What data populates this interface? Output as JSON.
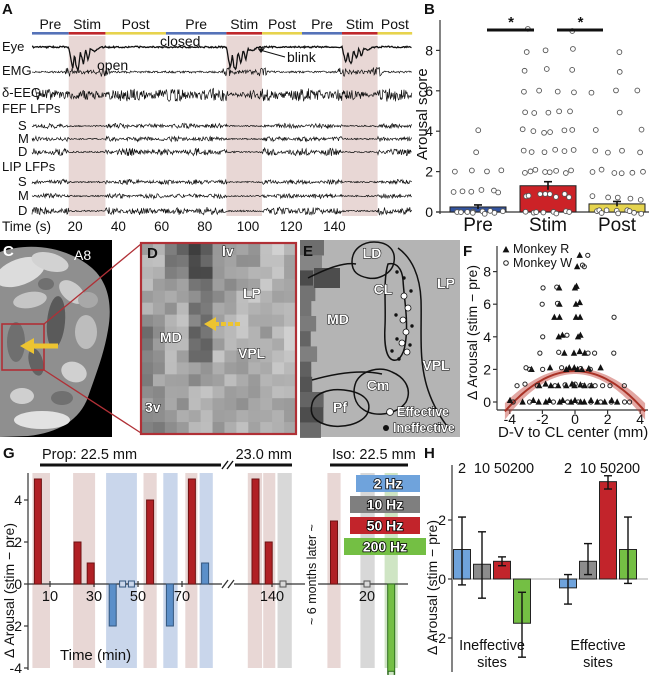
{
  "panels": {
    "A": {
      "label": "A",
      "phases": [
        {
          "name": "Pre",
          "t0": 0,
          "t1": 17,
          "color": "#5572b8"
        },
        {
          "name": "Stim",
          "t0": 17,
          "t1": 34,
          "color": "#bf282c"
        },
        {
          "name": "Post",
          "t0": 34,
          "t1": 62,
          "color": "#e7d34d"
        },
        {
          "name": "Pre",
          "t0": 62,
          "t1": 90,
          "color": "#5572b8"
        },
        {
          "name": "Stim",
          "t0": 90,
          "t1": 106.5,
          "color": "#bf282c"
        },
        {
          "name": "Post",
          "t0": 106.5,
          "t1": 125,
          "color": "#e7d34d"
        },
        {
          "name": "Pre",
          "t0": 125,
          "t1": 143.5,
          "color": "#5572b8"
        },
        {
          "name": "Stim",
          "t0": 143.5,
          "t1": 160,
          "color": "#bf282c"
        },
        {
          "name": "Post",
          "t0": 160,
          "t1": 176,
          "color": "#e7d34d"
        }
      ],
      "stim_windows": [
        [
          17,
          34
        ],
        [
          90,
          106.5
        ],
        [
          143.5,
          160
        ]
      ],
      "stim_band_color": "#e8d7d5",
      "trace_labels": [
        "Eye",
        "EMG",
        "δ-EEG"
      ],
      "lfp_groups": [
        {
          "label": "FEF LFPs",
          "subs": [
            "S",
            "M",
            "D"
          ]
        },
        {
          "label": "LIP LFPs",
          "subs": [
            "S",
            "M",
            "D"
          ]
        }
      ],
      "annotations": {
        "closed": "closed",
        "open": "open",
        "blink": "blink"
      },
      "time_axis": {
        "label": "Time (s)",
        "ticks": [
          20,
          40,
          60,
          80,
          100,
          120,
          140
        ]
      }
    },
    "B": {
      "label": "B"
    },
    "C": {
      "label": "C",
      "area_label": "A8",
      "box_color": "#b03036",
      "arrow_color": "#edc431"
    },
    "D": {
      "label": "D",
      "region_labels": [
        "lv",
        "LP",
        "MD",
        "VPL",
        "3v"
      ],
      "border_color": "#b03036",
      "arrow_color": "#edc431"
    },
    "E": {
      "label": "E",
      "region_labels": [
        "LD",
        "CL",
        "LP",
        "MD",
        "VPL",
        "Cm",
        "Pf"
      ],
      "legend": [
        {
          "label": "Effective",
          "marker": "white-dot"
        },
        {
          "label": "Ineffective",
          "marker": "black-dot"
        }
      ]
    },
    "F": {
      "label": "F"
    },
    "G": {
      "label": "G"
    },
    "H": {
      "label": "H"
    }
  },
  "chart_data": [
    {
      "panel": "B",
      "type": "bar",
      "ylabel": "Arousal score",
      "categories": [
        "Pre",
        "Stim",
        "Post"
      ],
      "bar_values": [
        0.25,
        1.3,
        0.4
      ],
      "bar_errors": [
        0.1,
        0.2,
        0.12
      ],
      "bar_colors": [
        "#34549f",
        "#cc2227",
        "#e5d44e"
      ],
      "ylim": [
        0,
        9.6
      ],
      "yticks": [
        0,
        2,
        4,
        6,
        8
      ],
      "points": {
        "Pre": [
          [
            0,
            10
          ],
          [
            1,
            6
          ],
          [
            2,
            4
          ],
          [
            3,
            1
          ],
          [
            4,
            1
          ]
        ],
        "Stim": [
          [
            0,
            8
          ],
          [
            0.8,
            8
          ],
          [
            2,
            8
          ],
          [
            3,
            6
          ],
          [
            4,
            6
          ],
          [
            5,
            5
          ],
          [
            6,
            4
          ],
          [
            7,
            3
          ],
          [
            8,
            3
          ],
          [
            9,
            2
          ]
        ],
        "Post": [
          [
            0,
            10
          ],
          [
            0.7,
            5
          ],
          [
            2,
            6
          ],
          [
            3,
            4
          ],
          [
            4,
            2
          ],
          [
            5,
            1
          ],
          [
            6,
            3
          ],
          [
            7,
            1
          ],
          [
            8,
            1
          ]
        ]
      },
      "significance": [
        {
          "from": "Pre",
          "to": "Stim",
          "label": "*"
        },
        {
          "from": "Stim",
          "to": "Post",
          "label": "*"
        }
      ]
    },
    {
      "panel": "F",
      "type": "scatter",
      "xlabel": "D-V to CL center (mm)",
      "ylabel": "Δ Arousal (stim − pre)",
      "xlim": [
        -4.5,
        4.5
      ],
      "ylim": [
        -0.7,
        9.6
      ],
      "xticks": [
        -4,
        -2,
        0,
        2,
        4
      ],
      "yticks": [
        0,
        2,
        4,
        6,
        8
      ],
      "series": [
        {
          "name": "Monkey R",
          "marker": "triangle",
          "points": [
            [
              0.3,
              9
            ],
            [
              0.2,
              8.3
            ],
            [
              -1,
              7
            ],
            [
              0,
              7
            ],
            [
              0.15,
              7.1
            ],
            [
              -1,
              6
            ],
            [
              0,
              6
            ],
            [
              0.25,
              6.1
            ],
            [
              -1.2,
              5.2
            ],
            [
              -0.9,
              5.2
            ],
            [
              0,
              5.2
            ],
            [
              0.3,
              5.2
            ],
            [
              -1,
              4
            ],
            [
              -0.8,
              4.1
            ],
            [
              0.2,
              4
            ],
            [
              0.4,
              4.1
            ],
            [
              -0.6,
              3
            ],
            [
              0,
              3
            ],
            [
              0.3,
              3.1
            ],
            [
              0.6,
              3
            ],
            [
              1.5,
              2.1
            ],
            [
              -2.6,
              2
            ],
            [
              -1.5,
              2.1
            ],
            [
              -0.5,
              2
            ],
            [
              -0.3,
              2.1
            ],
            [
              0,
              2.1
            ],
            [
              0.2,
              2
            ],
            [
              0.5,
              2
            ],
            [
              0.8,
              2.05
            ],
            [
              -2.2,
              1
            ],
            [
              -1.8,
              1.1
            ],
            [
              -1.5,
              1
            ],
            [
              -1,
              1
            ],
            [
              -0.5,
              1
            ],
            [
              -0.2,
              1.1
            ],
            [
              0,
              1
            ],
            [
              0.3,
              1.05
            ],
            [
              0.6,
              1
            ],
            [
              1,
              1
            ],
            [
              -4,
              0.1
            ],
            [
              -3.2,
              0
            ],
            [
              -2.5,
              0.1
            ],
            [
              -2.2,
              0
            ],
            [
              -1.8,
              0
            ],
            [
              -1.5,
              0.1
            ],
            [
              -1,
              0
            ],
            [
              -0.7,
              0.1
            ],
            [
              -0.3,
              0
            ],
            [
              0,
              0.1
            ],
            [
              0.3,
              0
            ],
            [
              0.6,
              0
            ],
            [
              1,
              0.1
            ],
            [
              1.4,
              0
            ],
            [
              1.8,
              0
            ],
            [
              2.2,
              0.1
            ],
            [
              2.6,
              0
            ]
          ]
        },
        {
          "name": "Monkey W",
          "marker": "circle",
          "points": [
            [
              0.8,
              9
            ],
            [
              0.45,
              8.4
            ],
            [
              0.6,
              8.3
            ],
            [
              -2,
              7
            ],
            [
              -1.1,
              7.05
            ],
            [
              -2,
              6
            ],
            [
              -1.05,
              6.05
            ],
            [
              2.4,
              5.2
            ],
            [
              -2,
              4
            ],
            [
              -0.5,
              4.1
            ],
            [
              -2.2,
              3
            ],
            [
              -1,
              3.05
            ],
            [
              0.8,
              3
            ],
            [
              1.2,
              3
            ],
            [
              2.4,
              3
            ],
            [
              -3,
              2.1
            ],
            [
              -2.8,
              2
            ],
            [
              -2,
              2
            ],
            [
              -0.8,
              2.1
            ],
            [
              0.35,
              2.05
            ],
            [
              1,
              2
            ],
            [
              -3.5,
              1
            ],
            [
              -3,
              1.1
            ],
            [
              -2.3,
              1
            ],
            [
              -1.2,
              1
            ],
            [
              -0.6,
              1.05
            ],
            [
              0.05,
              1.1
            ],
            [
              0.5,
              1
            ],
            [
              0.9,
              1
            ],
            [
              1.3,
              1
            ],
            [
              1.7,
              1
            ],
            [
              2.1,
              1
            ],
            [
              3,
              1
            ],
            [
              -3.8,
              0
            ],
            [
              -2.8,
              0
            ],
            [
              -1.3,
              0
            ],
            [
              -0.5,
              0
            ],
            [
              0.2,
              0
            ],
            [
              0.9,
              0
            ],
            [
              1.6,
              0
            ],
            [
              2.3,
              0
            ],
            [
              3,
              0
            ],
            [
              3.4,
              0
            ]
          ]
        }
      ],
      "fit_curve": {
        "type": "quadratic",
        "peak_y": 1.9,
        "coeff": -0.134,
        "color": "#a93226",
        "band_color": "rgba(190,60,50,0.45)"
      }
    },
    {
      "panel": "G",
      "type": "bar",
      "xlabel": "Time (min)",
      "ylabel": "Δ Arousal (stim − pre)",
      "ylim": [
        -4.8,
        5.5
      ],
      "yticks": [
        -4,
        -2,
        0,
        2,
        4
      ],
      "note_rotated": "~ 6 months later ~",
      "sections": [
        {
          "header": "Prop: 22.5 mm",
          "xticks": [
            10,
            30,
            50,
            70
          ],
          "bars": [
            {
              "t": 4.5,
              "v": 5,
              "hz": 50
            },
            {
              "t": 22.5,
              "v": 2,
              "hz": 50
            },
            {
              "t": 28.5,
              "v": 1,
              "hz": 50
            },
            {
              "t": 38.5,
              "v": -2,
              "hz": 2
            },
            {
              "t": 43,
              "v": 0,
              "hz": 2,
              "marker": true
            },
            {
              "t": 47,
              "v": 0,
              "hz": 2,
              "marker": true
            },
            {
              "t": 55.5,
              "v": 4,
              "hz": 50
            },
            {
              "t": 64.5,
              "v": -2,
              "hz": 2
            },
            {
              "t": 74.5,
              "v": 5,
              "hz": 50
            },
            {
              "t": 80.5,
              "v": 1,
              "hz": 2
            }
          ],
          "bands": [
            {
              "t0": 2,
              "t1": 10,
              "hz": 50
            },
            {
              "t0": 20.5,
              "t1": 30.5,
              "hz": 50
            },
            {
              "t0": 35.5,
              "t1": 49.5,
              "hz": 2
            },
            {
              "t0": 52.5,
              "t1": 58.5,
              "hz": 50
            },
            {
              "t0": 61.5,
              "t1": 68,
              "hz": 2
            },
            {
              "t0": 71.5,
              "t1": 77,
              "hz": 50
            },
            {
              "t0": 78,
              "t1": 84,
              "hz": 2
            }
          ]
        },
        {
          "header": "23.0 mm",
          "xticks": [
            140
          ],
          "bars": [
            {
              "t": 132.5,
              "v": 5,
              "hz": 50
            },
            {
              "t": 138.5,
              "v": 2,
              "hz": 50
            },
            {
              "t": 145,
              "v": 0,
              "hz": 10,
              "marker": true
            }
          ],
          "bands": [
            {
              "t0": 129,
              "t1": 135.5,
              "hz": 50
            },
            {
              "t0": 136,
              "t1": 141.5,
              "hz": 50
            },
            {
              "t0": 142.5,
              "t1": 149,
              "hz": 10
            }
          ]
        },
        {
          "header": "Iso:  22.5 mm",
          "xticks": [
            20
          ],
          "bars": [
            {
              "t": 5,
              "v": 3,
              "hz": 50
            },
            {
              "t": 20,
              "v": 0,
              "hz": 10,
              "marker": true
            },
            {
              "t": 31,
              "v": -4.3,
              "hz": 200,
              "end_marker": true
            }
          ],
          "bands": [
            {
              "t0": 2,
              "t1": 8,
              "hz": 50
            },
            {
              "t0": 17,
              "t1": 23.5,
              "hz": 10
            },
            {
              "t0": 28,
              "t1": 34,
              "hz": 200
            }
          ]
        }
      ],
      "legend": [
        {
          "label": "2 Hz",
          "color": "#6fa3dc"
        },
        {
          "label": "10 Hz",
          "color": "#7f7f7f"
        },
        {
          "label": "50 Hz",
          "color": "#c2242b"
        },
        {
          "label": "200 Hz",
          "color": "#74bf44"
        }
      ],
      "bar_colors": {
        "2": "#5b8fc9",
        "10": "#b5b5b5",
        "50": "#b02025",
        "200": "#74bf44"
      },
      "band_colors": {
        "2": "#c9d6eb",
        "10": "#d8d8d8",
        "50": "#e8d7d5",
        "200": "#cfe5c4"
      }
    },
    {
      "panel": "H",
      "type": "bar",
      "ylabel": "Δ Arousal (stim − pre)",
      "ylim": [
        -3.1,
        3.9
      ],
      "yticks": [
        -2,
        0,
        2
      ],
      "freq_labels": [
        "2",
        "10",
        "50",
        "200"
      ],
      "colors": [
        "#6fa3dc",
        "#8c8c8c",
        "#c2242b",
        "#74bf44"
      ],
      "groups": [
        {
          "label_line1": "Ineffective",
          "label_line2": "sites",
          "values": [
            1.0,
            0.5,
            0.6,
            -1.5
          ],
          "err_low": [
            1.2,
            1.15,
            0.15,
            1.15
          ],
          "err_high": [
            1.1,
            1.1,
            0.15,
            1.05
          ]
        },
        {
          "label_line1": "Effective",
          "label_line2": "sites",
          "values": [
            -0.3,
            0.6,
            3.3,
            1.0
          ],
          "err_low": [
            0.55,
            0.45,
            0.25,
            1.15
          ],
          "err_high": [
            0.45,
            0.6,
            0.2,
            1.1
          ]
        }
      ]
    }
  ]
}
